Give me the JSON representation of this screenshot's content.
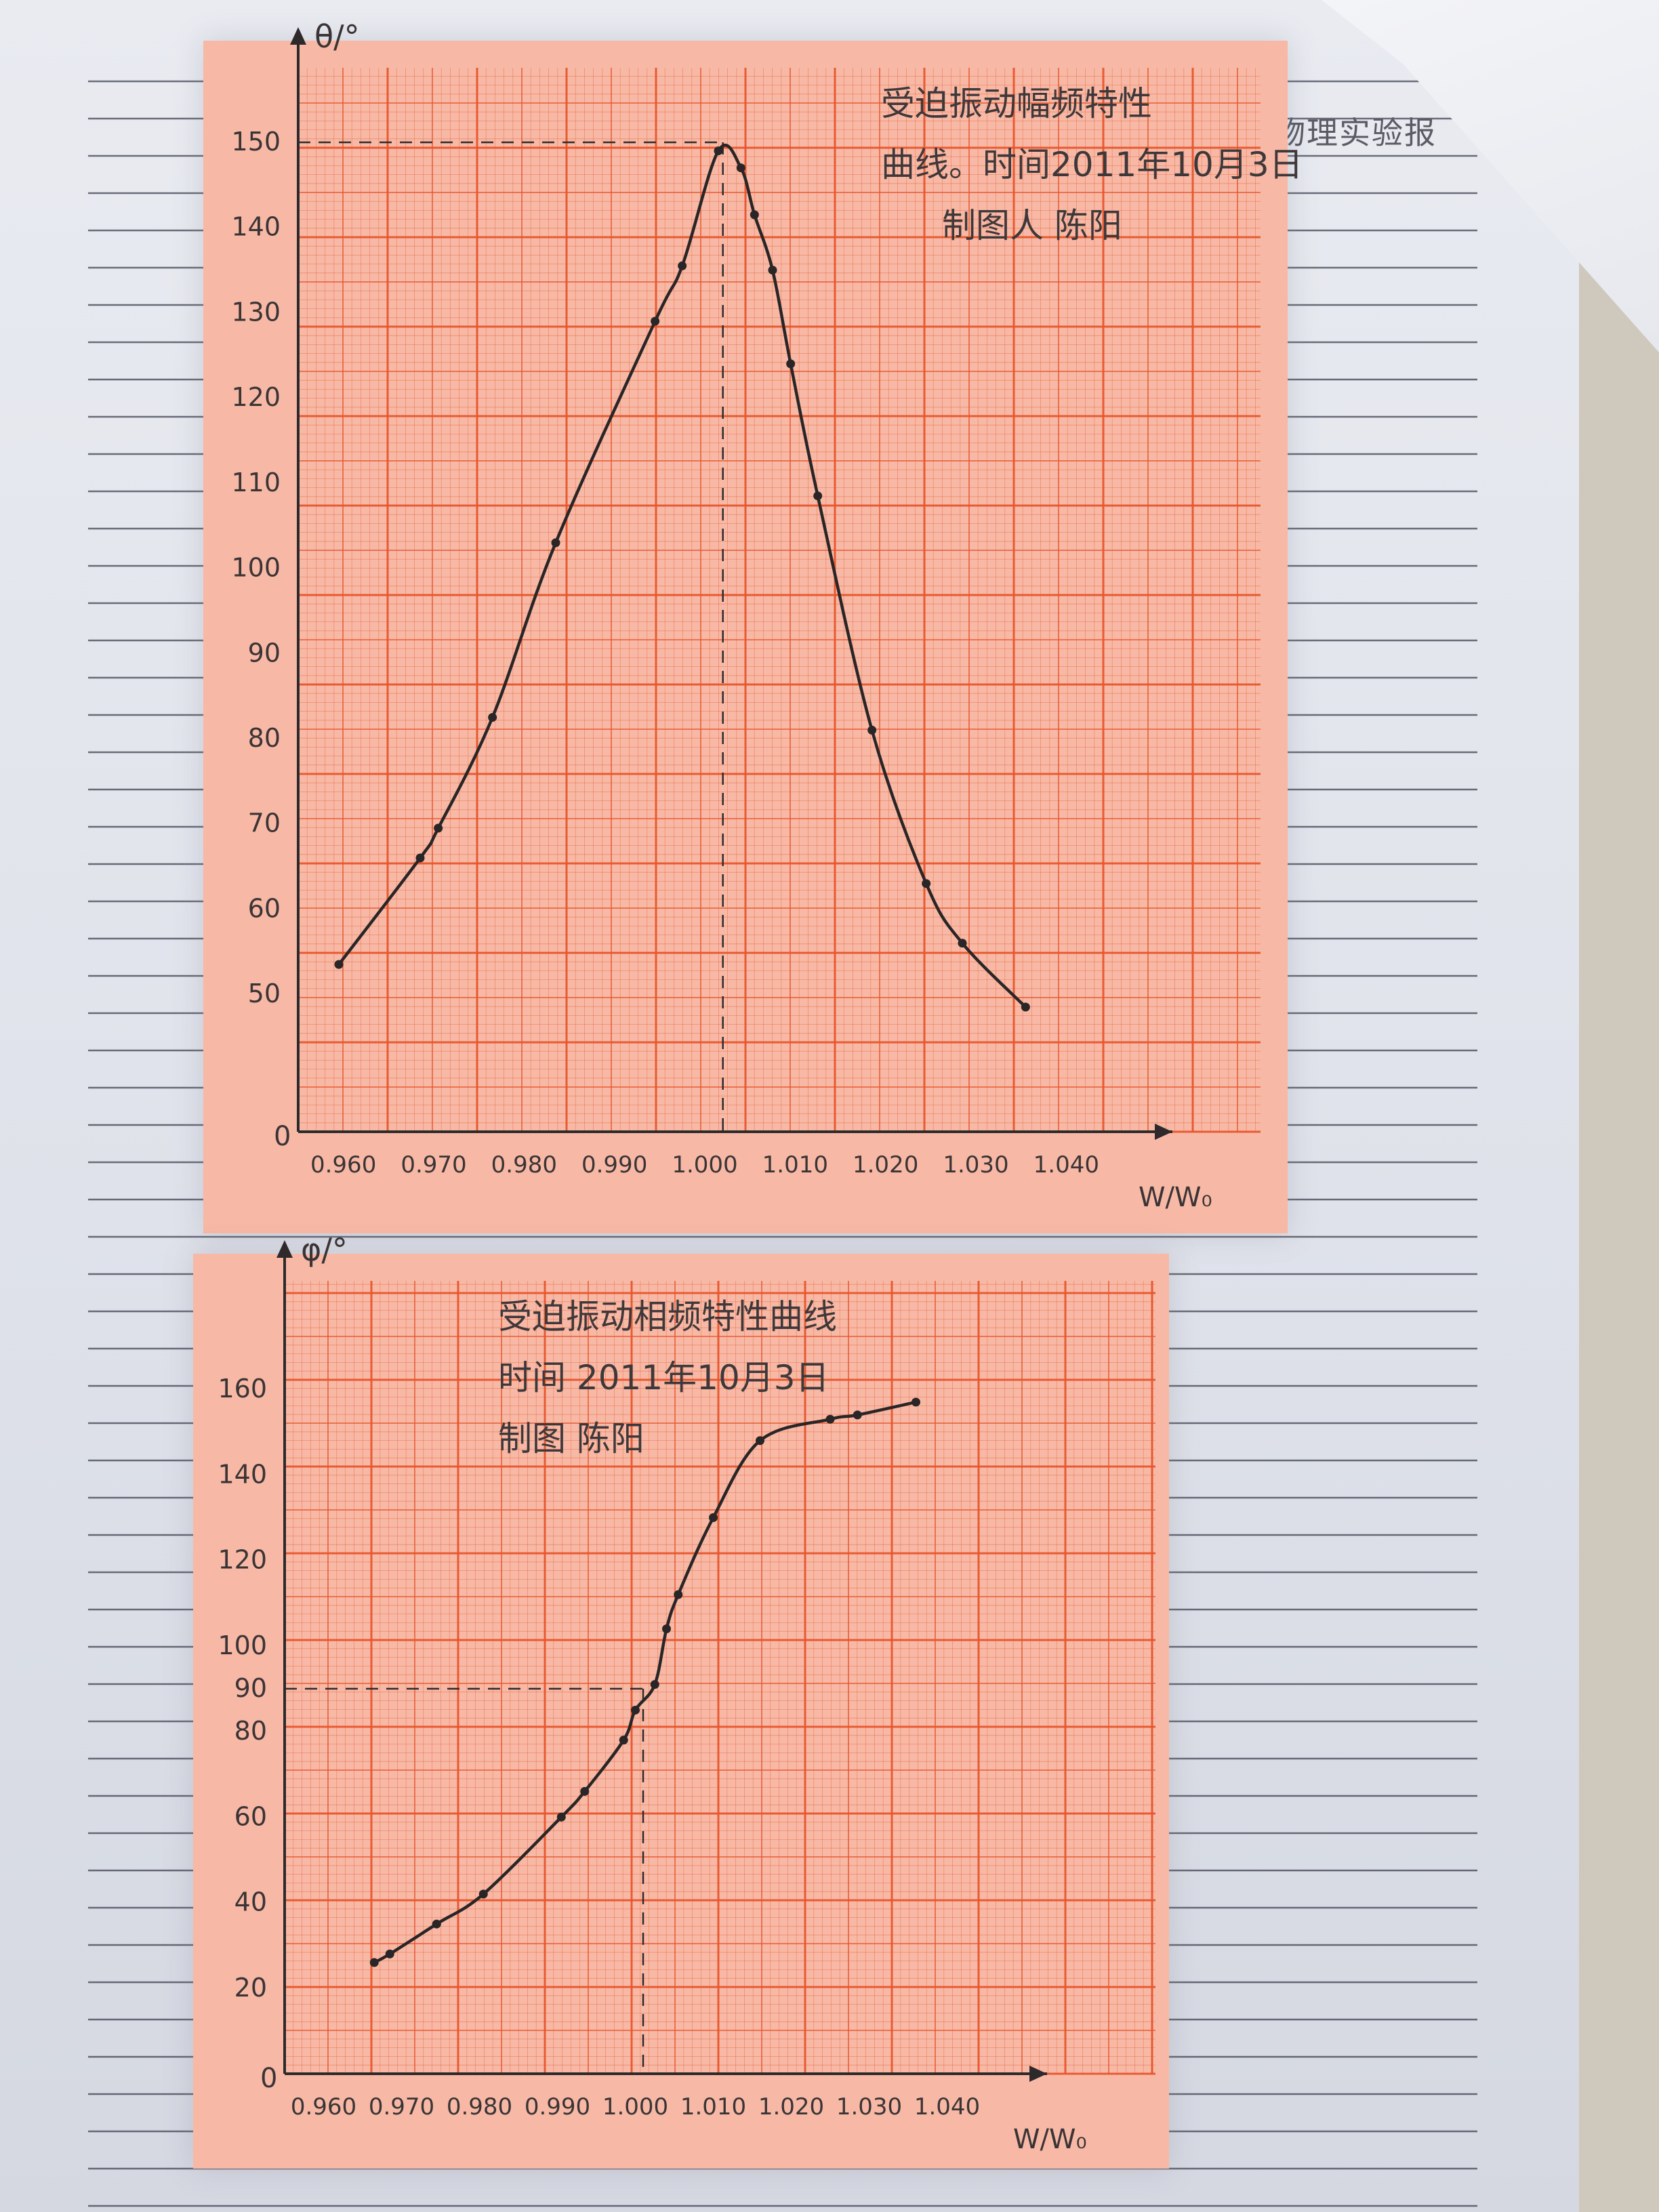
{
  "page": {
    "header_text": "物理实验报"
  },
  "chart_data": [
    {
      "type": "line",
      "title": "受迫振动幅频特性",
      "caption_lines": [
        "曲线。时间2011年10月3日",
        "制图人 陈阳"
      ],
      "xlabel": "W/W₀",
      "ylabel": "θ/°",
      "xlim": [
        0.955,
        1.045
      ],
      "ylim": [
        45,
        150
      ],
      "xticks": [
        "0.960",
        "0.970",
        "0.980",
        "0.990",
        "1.000",
        "1.010",
        "1.020",
        "1.030",
        "1.040"
      ],
      "yticks": [
        "50",
        "60",
        "70",
        "80",
        "90",
        "100",
        "110",
        "120",
        "130",
        "140",
        "150"
      ],
      "origin_label": "0",
      "grid": true,
      "reference_lines": {
        "x": 1.002,
        "y": 150
      },
      "points": [
        {
          "x": 0.9595,
          "y": 53.5
        },
        {
          "x": 0.9685,
          "y": 66
        },
        {
          "x": 0.9705,
          "y": 69.5
        },
        {
          "x": 0.9765,
          "y": 82.5
        },
        {
          "x": 0.9835,
          "y": 103
        },
        {
          "x": 0.9945,
          "y": 129
        },
        {
          "x": 0.9975,
          "y": 135.5
        },
        {
          "x": 1.0015,
          "y": 149
        },
        {
          "x": 1.004,
          "y": 147
        },
        {
          "x": 1.0055,
          "y": 141.5
        },
        {
          "x": 1.0075,
          "y": 135
        },
        {
          "x": 1.0095,
          "y": 124
        },
        {
          "x": 1.0125,
          "y": 108.5
        },
        {
          "x": 1.0185,
          "y": 81
        },
        {
          "x": 1.0245,
          "y": 63
        },
        {
          "x": 1.0285,
          "y": 56
        },
        {
          "x": 1.0355,
          "y": 48.5
        }
      ]
    },
    {
      "type": "line",
      "title": "受迫振动相频特性曲线",
      "caption_lines": [
        "时间 2011年10月3日",
        "制图 陈阳"
      ],
      "xlabel": "W/W₀",
      "ylabel": "φ/°",
      "xlim": [
        0.955,
        1.045
      ],
      "ylim": [
        0,
        160
      ],
      "xticks": [
        "0.960",
        "0.970",
        "0.980",
        "0.990",
        "1.000",
        "1.010",
        "1.020",
        "1.030",
        "1.040"
      ],
      "yticks": [
        "20",
        "40",
        "60",
        "80",
        "90",
        "100",
        "120",
        "140",
        "160"
      ],
      "origin_label": "0",
      "grid": true,
      "reference_lines": {
        "x": 1.001,
        "y": 90
      },
      "points": [
        {
          "x": 0.9665,
          "y": 26
        },
        {
          "x": 0.9685,
          "y": 28
        },
        {
          "x": 0.9745,
          "y": 35
        },
        {
          "x": 0.9805,
          "y": 42
        },
        {
          "x": 0.9905,
          "y": 60
        },
        {
          "x": 0.9935,
          "y": 66
        },
        {
          "x": 0.9985,
          "y": 78
        },
        {
          "x": 1.0,
          "y": 85
        },
        {
          "x": 1.0025,
          "y": 91
        },
        {
          "x": 1.004,
          "y": 104
        },
        {
          "x": 1.0055,
          "y": 112
        },
        {
          "x": 1.01,
          "y": 130
        },
        {
          "x": 1.016,
          "y": 148
        },
        {
          "x": 1.025,
          "y": 153
        },
        {
          "x": 1.0285,
          "y": 154
        },
        {
          "x": 1.036,
          "y": 157
        }
      ]
    }
  ]
}
